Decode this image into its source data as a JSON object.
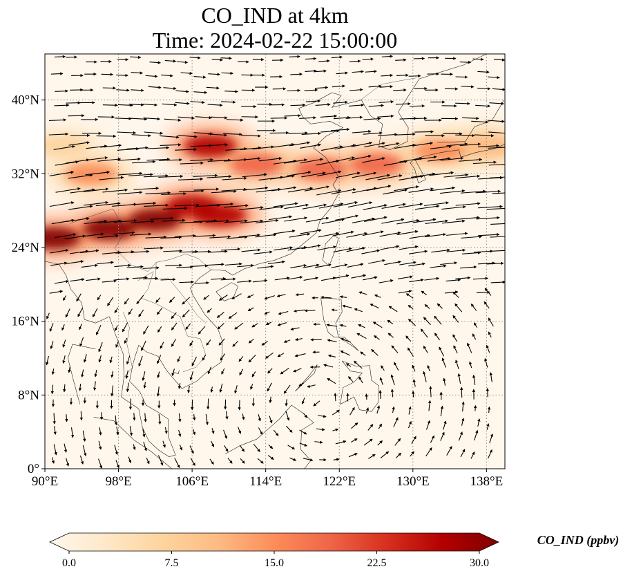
{
  "title": {
    "line1": "CO_IND at 4km",
    "line2": "Time: 2024-02-22 15:00:00"
  },
  "map": {
    "extent": {
      "lon": [
        90,
        140
      ],
      "lat": [
        0,
        45
      ]
    },
    "lon_ticks": [
      {
        "value": 90,
        "label": "90°E"
      },
      {
        "value": 98,
        "label": "98°E"
      },
      {
        "value": 106,
        "label": "106°E"
      },
      {
        "value": 114,
        "label": "114°E"
      },
      {
        "value": 122,
        "label": "122°E"
      },
      {
        "value": 130,
        "label": "130°E"
      },
      {
        "value": 138,
        "label": "138°E"
      }
    ],
    "lat_ticks": [
      {
        "value": 0,
        "label": "0°"
      },
      {
        "value": 8,
        "label": "8°N"
      },
      {
        "value": 16,
        "label": "16°N"
      },
      {
        "value": 24,
        "label": "24°N"
      },
      {
        "value": 32,
        "label": "32°N"
      },
      {
        "value": 40,
        "label": "40°N"
      }
    ],
    "gridlines": true,
    "gridline_style": "dotted",
    "plumes": [
      {
        "lon": 91,
        "lat": 25,
        "value": 30
      },
      {
        "lon": 97,
        "lat": 26,
        "value": 30
      },
      {
        "lon": 102,
        "lat": 27,
        "value": 29
      },
      {
        "lon": 106,
        "lat": 28.5,
        "value": 28
      },
      {
        "lon": 109,
        "lat": 27.5,
        "value": 26
      },
      {
        "lon": 108,
        "lat": 35,
        "value": 25
      },
      {
        "lon": 113,
        "lat": 33,
        "value": 20
      },
      {
        "lon": 120,
        "lat": 32.5,
        "value": 19
      },
      {
        "lon": 126,
        "lat": 33,
        "value": 18
      },
      {
        "lon": 133,
        "lat": 34.5,
        "value": 15
      },
      {
        "lon": 138,
        "lat": 35,
        "value": 12
      },
      {
        "lon": 95,
        "lat": 32,
        "value": 14
      },
      {
        "lon": 92,
        "lat": 35,
        "value": 8
      }
    ],
    "wind_field": "westerly jet north of 20°N, weak cyclonic flow over South China Sea"
  },
  "colorbar": {
    "colormap": "OrRd",
    "min": 0.0,
    "max": 30.0,
    "ticks": [
      "0.0",
      "7.5",
      "15.0",
      "22.5",
      "30.0"
    ],
    "extend": "both",
    "label": "CO_IND (ppbv)",
    "colors": [
      "#fff7ec",
      "#fee8c8",
      "#fdd49e",
      "#fdbb84",
      "#fc8d59",
      "#ef6548",
      "#d7301f",
      "#b30000",
      "#7f0000"
    ]
  }
}
